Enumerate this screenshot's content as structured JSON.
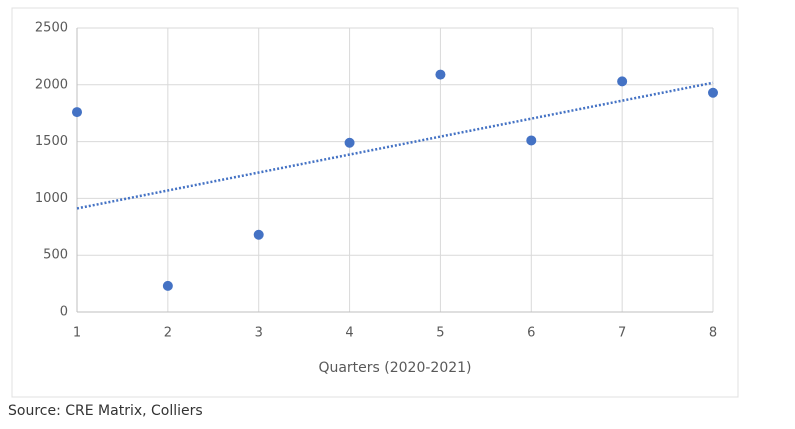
{
  "chart_data": {
    "type": "scatter",
    "x_label": "Quarters (2020-2021)",
    "x": [
      1,
      2,
      3,
      4,
      5,
      6,
      7,
      8
    ],
    "values": [
      1760,
      230,
      680,
      1490,
      2090,
      1510,
      2030,
      1930
    ],
    "color": "#4472c4",
    "xlim": [
      1,
      8
    ],
    "xticks": [
      1,
      2,
      3,
      4,
      5,
      6,
      7,
      8
    ],
    "ylim": [
      0,
      2500
    ],
    "yticks": [
      0,
      500,
      1000,
      1500,
      2000,
      2500
    ],
    "grid": true,
    "trendline": "linear"
  },
  "source": "Source: CRE Matrix, Colliers"
}
